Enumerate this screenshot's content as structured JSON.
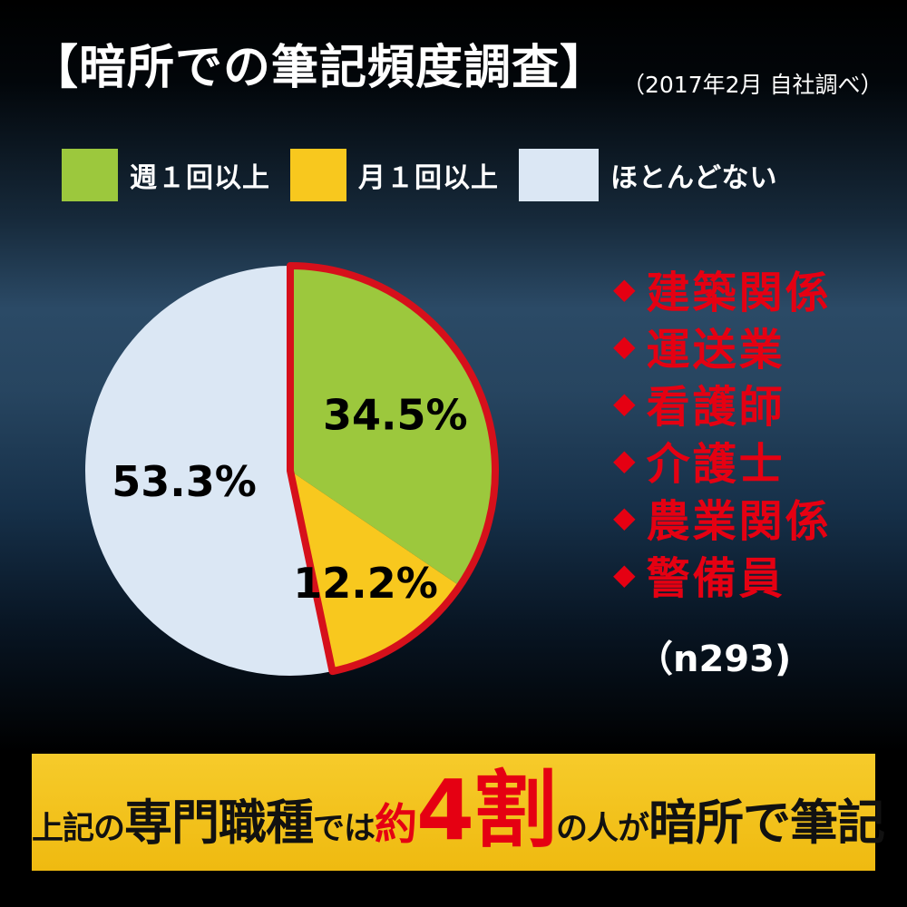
{
  "title": "【暗所での筆記頻度調査】",
  "subtitle": "（2017年2月 自社調べ）",
  "colors": {
    "green": "#9cc83d",
    "yellow": "#f8c81e",
    "blue": "#dbe7f4",
    "red": "#e50012",
    "outline_red": "#d6101b",
    "banner_bg_top": "#f6cb2b",
    "banner_bg_bottom": "#efba10",
    "banner_text": "#111111",
    "white": "#ffffff"
  },
  "legend": {
    "items": [
      {
        "label": "週１回以上",
        "color_key": "green"
      },
      {
        "label": "月１回以上",
        "color_key": "yellow"
      },
      {
        "label": "ほとんどない",
        "color_key": "blue"
      }
    ]
  },
  "chart_data": {
    "type": "pie",
    "title": "暗所での筆記頻度調査",
    "categories": [
      "週１回以上",
      "月１回以上",
      "ほとんどない"
    ],
    "values": [
      34.5,
      12.2,
      53.3
    ],
    "unit": "%",
    "value_labels": [
      "34.5%",
      "12.2%",
      "53.3%"
    ],
    "colors": [
      "#9cc83d",
      "#f8c81e",
      "#dbe7f4"
    ],
    "start_angle": 0,
    "direction": "clockwise",
    "legend_position": "top",
    "highlight_outline": {
      "segments": [
        0,
        1
      ],
      "color": "#d6101b",
      "note": "red outline around combined 週1回以上+月1回以上 (46.7%)"
    }
  },
  "occupations": {
    "bullet": "◆",
    "items": [
      "建築関係",
      "運送業",
      "看護師",
      "介護士",
      "農業関係",
      "警備員"
    ],
    "sample_size": "（n293)"
  },
  "banner": {
    "segments": [
      {
        "text": "上記の",
        "style": "normal"
      },
      {
        "text": "専門職種",
        "style": "large"
      },
      {
        "text": "では",
        "style": "normal"
      },
      {
        "text": "約",
        "style": "red-medium"
      },
      {
        "text": "4割",
        "style": "red-huge"
      },
      {
        "text": "の人が",
        "style": "normal"
      },
      {
        "text": "暗所で筆記",
        "style": "large"
      }
    ]
  }
}
